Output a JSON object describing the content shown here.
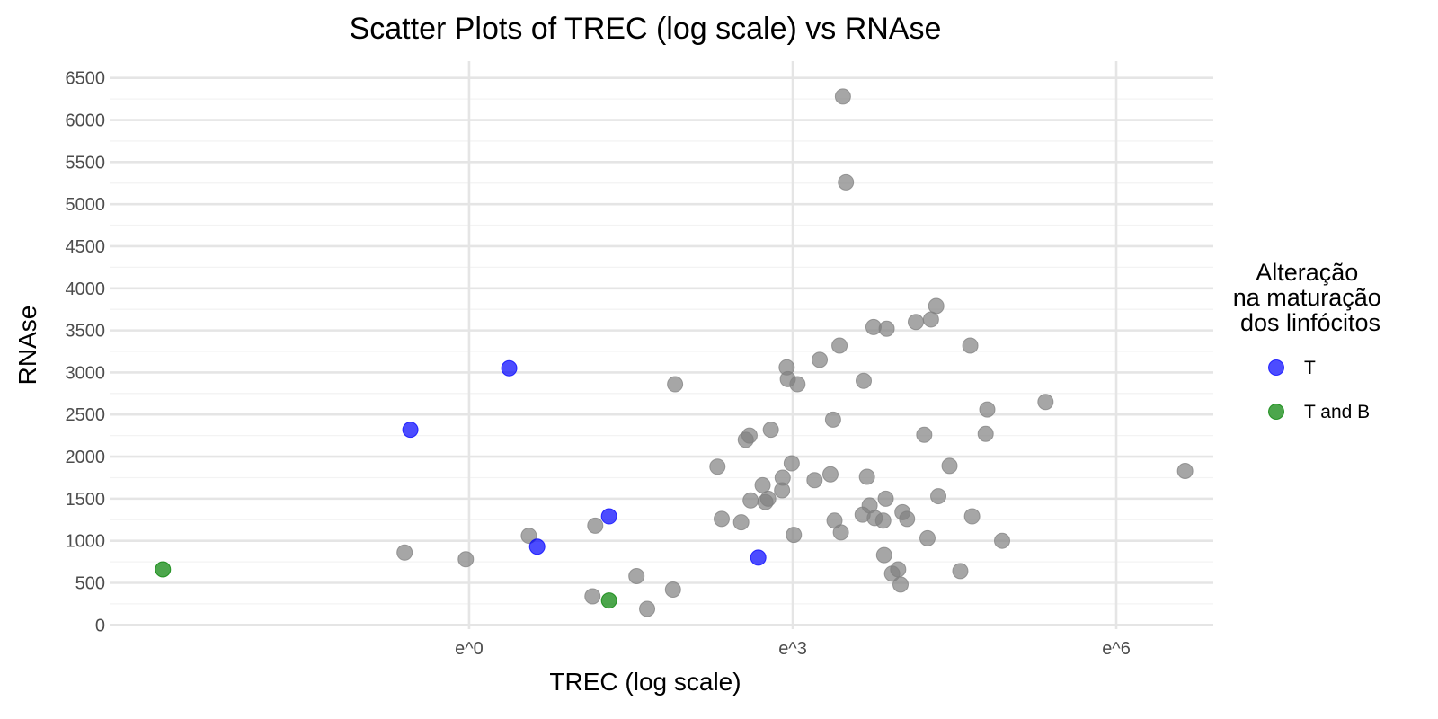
{
  "chart_data": {
    "type": "scatter",
    "title": "Scatter Plots of TREC (log scale) vs RNAse",
    "xlabel": "TREC (log scale)",
    "ylabel": "RNAse",
    "x_scale": "log (natural)",
    "x_ticks": [
      "e^0",
      "e^3",
      "e^6"
    ],
    "x_tick_values": [
      1,
      20.09,
      403.4
    ],
    "xlim": [
      0.0357,
      992
    ],
    "y_ticks": [
      "0",
      "500",
      "1000",
      "1500",
      "2000",
      "2500",
      "3000",
      "3500",
      "4000",
      "4500",
      "5000",
      "5500",
      "6000",
      "6500"
    ],
    "ylim": [
      -50,
      6700
    ],
    "grid": true,
    "legend": {
      "title": "Alteração na maturação dos linfócitos",
      "title_lines": [
        "Alteração",
        "na maturação",
        "dos linfócitos"
      ],
      "position": "right",
      "entries": [
        {
          "label": "T",
          "color": "#0000ff"
        },
        {
          "label": "T and B",
          "color": "#008000"
        }
      ]
    },
    "series": [
      {
        "color": "#808080",
        "x": [
          0.55,
          0.97,
          1.74,
          3.14,
          3.22,
          4.72,
          5.21,
          6.62,
          6.75,
          10.0,
          10.4,
          12.46,
          13.0,
          13.46,
          13.6,
          15.2,
          15.6,
          16.0,
          16.4,
          18.2,
          18.3,
          19.0,
          19.2,
          19.9,
          20.3,
          21.0,
          24.6,
          25.8,
          28.5,
          29.2,
          29.6,
          31.0,
          31.4,
          32.0,
          32.9,
          38.4,
          38.8,
          40.0,
          41.0,
          42.5,
          43.0,
          46.5,
          46.9,
          47.6,
          48.0,
          50.5,
          53.4,
          54.6,
          55.6,
          58.0,
          62.9,
          68.0,
          70.1,
          72.4,
          76.0,
          77.5,
          86.0,
          95.0,
          104.2,
          106.0,
          120.2,
          122.0,
          140.0,
          209.4,
          763.9
        ],
        "y": [
          860,
          780,
          1060,
          340,
          1180,
          580,
          190,
          420,
          2860,
          1880,
          1260,
          1220,
          2200,
          2250,
          1480,
          1660,
          1460,
          1500,
          2320,
          1600,
          1750,
          3060,
          2920,
          1920,
          1070,
          2860,
          1720,
          3150,
          1790,
          2440,
          1240,
          3320,
          1100,
          6280,
          5260,
          1310,
          2900,
          1760,
          1420,
          3540,
          1270,
          1240,
          830,
          1500,
          3520,
          610,
          660,
          480,
          1340,
          1260,
          3600,
          2260,
          1030,
          3630,
          3790,
          1530,
          1890,
          640,
          3320,
          1290,
          2270,
          2560,
          1000,
          2650,
          1830
        ]
      },
      {
        "color": "#0000ff",
        "x": [
          0.58,
          1.45,
          1.88,
          3.66,
          14.6
        ],
        "y": [
          2320,
          3050,
          930,
          1290,
          800
        ]
      },
      {
        "color": "#008000",
        "x": [
          0.0585,
          3.66
        ],
        "y": [
          660,
          290
        ]
      }
    ]
  }
}
